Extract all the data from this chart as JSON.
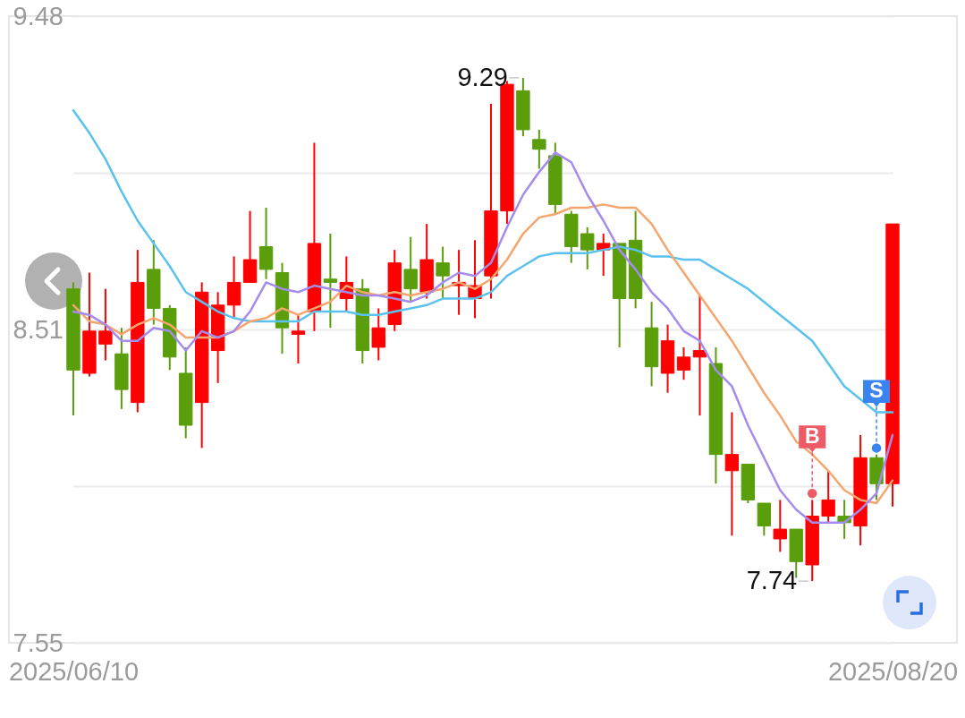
{
  "chart_data": {
    "type": "candlestick",
    "categories": [
      "2025/06/10",
      null,
      null,
      null,
      null,
      null,
      null,
      null,
      null,
      null,
      null,
      null,
      null,
      null,
      null,
      null,
      null,
      null,
      null,
      null,
      null,
      null,
      null,
      null,
      null,
      null,
      null,
      null,
      null,
      null,
      null,
      null,
      null,
      null,
      null,
      null,
      null,
      null,
      null,
      null,
      null,
      null,
      null,
      null,
      null,
      null,
      null,
      null,
      null,
      null,
      null,
      "2025/08/20"
    ],
    "ohlc": [
      [
        8.64,
        8.66,
        8.25,
        8.39
      ],
      [
        8.38,
        8.69,
        8.37,
        8.51
      ],
      [
        8.47,
        8.64,
        8.42,
        8.51
      ],
      [
        8.44,
        8.52,
        8.27,
        8.33
      ],
      [
        8.29,
        8.76,
        8.26,
        8.66
      ],
      [
        8.7,
        8.79,
        8.53,
        8.58
      ],
      [
        8.58,
        8.59,
        8.39,
        8.43
      ],
      [
        8.38,
        8.46,
        8.18,
        8.22
      ],
      [
        8.29,
        8.66,
        8.15,
        8.63
      ],
      [
        8.45,
        8.63,
        8.35,
        8.59
      ],
      [
        8.59,
        8.74,
        8.55,
        8.66
      ],
      [
        8.66,
        8.88,
        8.66,
        8.73
      ],
      [
        8.77,
        8.89,
        8.67,
        8.7
      ],
      [
        8.69,
        8.72,
        8.44,
        8.52
      ],
      [
        8.5,
        8.56,
        8.41,
        8.51
      ],
      [
        8.57,
        9.09,
        8.51,
        8.78
      ],
      [
        8.67,
        8.81,
        8.52,
        8.66
      ],
      [
        8.61,
        8.74,
        8.57,
        8.66
      ],
      [
        8.64,
        8.67,
        8.41,
        8.45
      ],
      [
        8.46,
        8.58,
        8.42,
        8.52
      ],
      [
        8.53,
        8.76,
        8.51,
        8.72
      ],
      [
        8.7,
        8.8,
        8.6,
        8.64
      ],
      [
        8.63,
        8.84,
        8.61,
        8.73
      ],
      [
        8.72,
        8.77,
        8.61,
        8.68
      ],
      [
        8.65,
        8.76,
        8.56,
        8.66
      ],
      [
        8.61,
        8.79,
        8.55,
        8.65
      ],
      [
        8.68,
        9.21,
        8.61,
        8.88
      ],
      [
        8.88,
        9.28,
        8.84,
        9.27
      ],
      [
        9.25,
        9.29,
        9.11,
        9.13
      ],
      [
        9.1,
        9.13,
        9.01,
        9.07
      ],
      [
        9.05,
        9.09,
        8.87,
        8.9
      ],
      [
        8.87,
        8.88,
        8.72,
        8.77
      ],
      [
        8.81,
        8.83,
        8.7,
        8.76
      ],
      [
        8.76,
        8.81,
        8.68,
        8.78
      ],
      [
        8.78,
        8.78,
        8.46,
        8.61
      ],
      [
        8.79,
        8.88,
        8.58,
        8.61
      ],
      [
        8.52,
        8.6,
        8.34,
        8.4
      ],
      [
        8.38,
        8.53,
        8.32,
        8.48
      ],
      [
        8.39,
        8.46,
        8.36,
        8.43
      ],
      [
        8.43,
        8.62,
        8.25,
        8.45
      ],
      [
        8.41,
        8.46,
        8.04,
        8.13
      ],
      [
        8.08,
        8.26,
        7.88,
        8.13
      ],
      [
        8.1,
        8.1,
        7.98,
        7.99
      ],
      [
        7.98,
        7.98,
        7.88,
        7.91
      ],
      [
        7.87,
        7.99,
        7.83,
        7.9
      ],
      [
        7.9,
        7.9,
        7.75,
        7.8
      ],
      [
        7.79,
        7.99,
        7.74,
        7.94
      ],
      [
        7.94,
        8.08,
        7.92,
        7.99
      ],
      [
        7.94,
        7.99,
        7.87,
        7.92
      ],
      [
        7.91,
        8.19,
        7.85,
        8.12
      ],
      [
        8.12,
        8.13,
        7.99,
        8.04
      ],
      [
        8.04,
        8.84,
        7.97,
        8.84
      ]
    ],
    "colors": [
      "#5a9e0c",
      "#ff0000",
      "#ff0000",
      "#5a9e0c",
      "#ff0000",
      "#5a9e0c",
      "#5a9e0c",
      "#5a9e0c",
      "#ff0000",
      "#ff0000",
      "#ff0000",
      "#ff0000",
      "#5a9e0c",
      "#5a9e0c",
      "#ff0000",
      "#ff0000",
      "#5a9e0c",
      "#ff0000",
      "#5a9e0c",
      "#ff0000",
      "#ff0000",
      "#5a9e0c",
      "#ff0000",
      "#5a9e0c",
      "#ff0000",
      "#ff0000",
      "#ff0000",
      "#ff0000",
      "#5a9e0c",
      "#5a9e0c",
      "#5a9e0c",
      "#5a9e0c",
      "#5a9e0c",
      "#ff0000",
      "#5a9e0c",
      "#5a9e0c",
      "#5a9e0c",
      "#ff0000",
      "#ff0000",
      "#ff0000",
      "#5a9e0c",
      "#ff0000",
      "#5a9e0c",
      "#5a9e0c",
      "#ff0000",
      "#5a9e0c",
      "#ff0000",
      "#ff0000",
      "#5a9e0c",
      "#ff0000",
      "#5a9e0c",
      "#ff0000"
    ],
    "value_labels": [
      null,
      null,
      null,
      null,
      null,
      null,
      null,
      null,
      null,
      null,
      null,
      null,
      null,
      null,
      null,
      null,
      null,
      null,
      null,
      null,
      null,
      null,
      null,
      null,
      null,
      null,
      null,
      null,
      "9.29",
      null,
      null,
      null,
      null,
      null,
      null,
      null,
      null,
      null,
      null,
      null,
      null,
      null,
      null,
      null,
      null,
      null,
      "7.74",
      null,
      null,
      null,
      null,
      null
    ],
    "series": [
      {
        "type": "line",
        "color": "#5bc2ee",
        "values": [
          9.19,
          9.12,
          9.04,
          8.94,
          8.85,
          8.78,
          8.71,
          8.63,
          8.6,
          8.57,
          8.55,
          8.54,
          8.54,
          8.54,
          8.54,
          8.57,
          8.57,
          8.57,
          8.56,
          8.56,
          8.57,
          8.58,
          8.59,
          8.61,
          8.61,
          8.61,
          8.63,
          8.68,
          8.71,
          8.74,
          8.75,
          8.75,
          8.75,
          8.76,
          8.77,
          8.76,
          8.74,
          8.74,
          8.73,
          8.73,
          8.7,
          8.67,
          8.64,
          8.6,
          8.56,
          8.52,
          8.48,
          8.41,
          8.34,
          8.3,
          8.26,
          8.26
        ]
      },
      {
        "type": "line",
        "color": "#f5a66e",
        "values": [
          8.59,
          8.54,
          8.53,
          8.5,
          8.53,
          8.55,
          8.53,
          8.49,
          8.49,
          8.49,
          8.51,
          8.54,
          8.55,
          8.58,
          8.56,
          8.58,
          8.6,
          8.65,
          8.63,
          8.62,
          8.63,
          8.62,
          8.63,
          8.64,
          8.66,
          8.64,
          8.67,
          8.73,
          8.81,
          8.86,
          8.87,
          8.89,
          8.89,
          8.9,
          8.89,
          8.89,
          8.84,
          8.76,
          8.69,
          8.62,
          8.55,
          8.48,
          8.4,
          8.32,
          8.25,
          8.17,
          8.13,
          8.08,
          8.02,
          7.99,
          7.98,
          8.05
        ]
      },
      {
        "type": "line",
        "color": "#a58cec",
        "values": [
          8.57,
          8.56,
          8.53,
          8.48,
          8.48,
          8.52,
          8.51,
          8.45,
          8.51,
          8.49,
          8.51,
          8.57,
          8.66,
          8.64,
          8.63,
          8.65,
          8.64,
          8.63,
          8.62,
          8.62,
          8.61,
          8.6,
          8.62,
          8.66,
          8.69,
          8.68,
          8.72,
          8.83,
          8.93,
          9.0,
          9.06,
          9.03,
          8.93,
          8.85,
          8.76,
          8.7,
          8.63,
          8.58,
          8.51,
          8.48,
          8.39,
          8.34,
          8.22,
          8.12,
          8.02,
          7.96,
          7.92,
          7.92,
          7.92,
          7.96,
          8.01,
          8.19
        ]
      },
      {
        "type": "scatter",
        "name": "B",
        "color": "#ef5a67",
        "marker": "circle",
        "values": [
          null,
          null,
          null,
          null,
          null,
          null,
          null,
          null,
          null,
          null,
          null,
          null,
          null,
          null,
          null,
          null,
          null,
          null,
          null,
          null,
          null,
          null,
          null,
          null,
          null,
          null,
          null,
          null,
          null,
          null,
          null,
          null,
          null,
          null,
          null,
          null,
          null,
          null,
          null,
          null,
          null,
          null,
          null,
          null,
          null,
          null,
          8.01,
          null,
          null,
          null,
          null,
          null
        ]
      },
      {
        "type": "scatter",
        "name": "S",
        "color": "#3a84f0",
        "marker": "circle",
        "values": [
          null,
          null,
          null,
          null,
          null,
          null,
          null,
          null,
          null,
          null,
          null,
          null,
          null,
          null,
          null,
          null,
          null,
          null,
          null,
          null,
          null,
          null,
          null,
          null,
          null,
          null,
          null,
          null,
          null,
          null,
          null,
          null,
          null,
          null,
          null,
          null,
          null,
          null,
          null,
          null,
          null,
          null,
          null,
          null,
          null,
          null,
          null,
          null,
          null,
          null,
          8.15,
          null
        ]
      }
    ],
    "ylim": [
      7.55,
      9.48
    ],
    "yticks": [
      9.48,
      {
        "value": 8.9975,
        "label": null
      },
      {
        "value": 8.515,
        "label": "8.51"
      },
      {
        "value": 8.0325,
        "label": null
      },
      7.55
    ],
    "grid": "y"
  }
}
